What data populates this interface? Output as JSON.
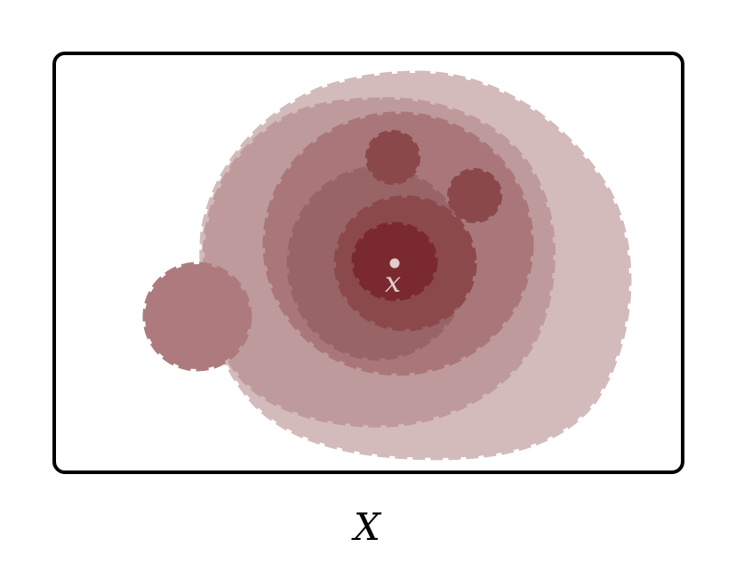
{
  "diagram": {
    "point_label": "x",
    "space_label": "X",
    "colors": {
      "frame": "#000000",
      "layer_1": "#d3babb",
      "layer_2": "#be9a9c",
      "layer_3": "#a97779",
      "layer_4": "#996466",
      "layer_5": "#8c494c",
      "core": "#7a2a2e",
      "point": "#e3cccd",
      "side_disk": "#ad7b7d",
      "small_disks": "#8a484b"
    }
  }
}
